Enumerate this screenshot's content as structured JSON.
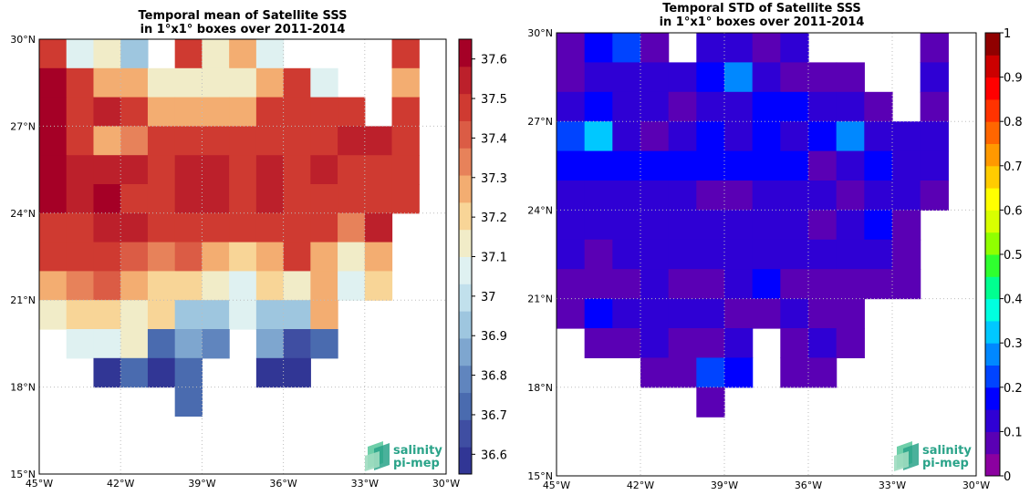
{
  "logo": {
    "line1": "salinity",
    "line2": "pi-mep"
  },
  "chart_data": [
    {
      "type": "heatmap",
      "title": "Temporal mean of Satellite SSS",
      "subtitle": "in 1°x1° boxes over 2011-2014",
      "lon_range": [
        -45,
        -30
      ],
      "lat_range": [
        15,
        30
      ],
      "x_ticks": [
        "45°W",
        "42°W",
        "39°W",
        "36°W",
        "33°W",
        "30°W"
      ],
      "y_ticks": [
        "15°N",
        "18°N",
        "21°N",
        "24°N",
        "27°N",
        "30°N"
      ],
      "colorbar": {
        "range": [
          36.55,
          37.65
        ],
        "ticks": [
          "36.6",
          "36.7",
          "36.8",
          "36.9",
          "37",
          "37.1",
          "37.2",
          "37.3",
          "37.4",
          "37.5",
          "37.6"
        ],
        "colors": [
          "#313695",
          "#3f4ea2",
          "#4a6baf",
          "#6085be",
          "#7ea6cf",
          "#9ec6df",
          "#c1e0ec",
          "#dff1f1",
          "#f1ecc8",
          "#f8d597",
          "#f3ad71",
          "#e7825a",
          "#db5c45",
          "#cf3a31",
          "#bc202b",
          "#a50026"
        ]
      },
      "grid_note": "rows from 29-30°N down to 17-18°N; columns from 45°W to 31°W",
      "grid": [
        [
          37.5,
          37.05,
          37.15,
          36.95,
          null,
          37.5,
          37.15,
          37.25,
          37.05,
          null,
          null,
          null,
          null,
          37.45,
          null
        ],
        [
          37.6,
          37.5,
          37.25,
          37.25,
          37.15,
          37.1,
          37.15,
          37.15,
          37.3,
          37.45,
          37.05,
          null,
          null,
          37.3,
          null
        ],
        [
          37.6,
          37.5,
          37.55,
          37.45,
          37.3,
          37.3,
          37.3,
          37.3,
          37.5,
          37.45,
          37.45,
          37.45,
          null,
          37.5,
          null
        ],
        [
          37.6,
          37.5,
          37.3,
          37.35,
          37.5,
          37.45,
          37.5,
          37.45,
          37.45,
          37.5,
          37.45,
          37.55,
          37.55,
          37.5,
          null
        ],
        [
          37.6,
          37.55,
          37.55,
          37.55,
          37.5,
          37.55,
          37.55,
          37.5,
          37.55,
          37.5,
          37.55,
          37.5,
          37.45,
          37.5,
          null
        ],
        [
          37.6,
          37.55,
          37.6,
          37.5,
          37.5,
          37.55,
          37.55,
          37.5,
          37.55,
          37.5,
          37.5,
          37.45,
          37.45,
          37.5,
          null
        ],
        [
          37.5,
          37.45,
          37.55,
          37.55,
          37.45,
          37.45,
          37.5,
          37.5,
          37.5,
          37.45,
          37.5,
          37.35,
          37.55,
          null,
          null
        ],
        [
          37.5,
          37.45,
          37.45,
          37.4,
          37.35,
          37.4,
          37.3,
          37.2,
          37.3,
          37.45,
          37.3,
          37.15,
          37.3,
          null,
          null
        ],
        [
          37.3,
          37.35,
          37.4,
          37.3,
          37.2,
          37.2,
          37.1,
          37.05,
          37.2,
          37.1,
          37.3,
          37.05,
          37.2,
          null,
          null
        ],
        [
          37.1,
          37.2,
          37.2,
          37.1,
          37.2,
          36.95,
          36.95,
          37.05,
          36.95,
          36.9,
          37.3,
          null,
          null,
          null,
          null
        ],
        [
          null,
          37.05,
          37.05,
          37.15,
          36.75,
          36.85,
          36.8,
          null,
          36.85,
          36.65,
          36.75,
          null,
          null,
          null,
          null
        ],
        [
          null,
          null,
          36.6,
          36.7,
          36.6,
          36.7,
          null,
          null,
          36.6,
          36.6,
          null,
          null,
          null,
          null,
          null
        ],
        [
          null,
          null,
          null,
          null,
          null,
          36.7,
          null,
          null,
          null,
          null,
          null,
          null,
          null,
          null,
          null
        ]
      ]
    },
    {
      "type": "heatmap",
      "title": "Temporal STD of Satellite SSS",
      "subtitle": "in 1°x1° boxes over 2011-2014",
      "lon_range": [
        -45,
        -30
      ],
      "lat_range": [
        15,
        30
      ],
      "x_ticks": [
        "45°W",
        "42°W",
        "39°W",
        "36°W",
        "33°W",
        "30°W"
      ],
      "y_ticks": [
        "15°N",
        "18°N",
        "21°N",
        "24°N",
        "27°N",
        "30°N"
      ],
      "colorbar": {
        "range": [
          0,
          1
        ],
        "ticks": [
          "0",
          "0.1",
          "0.2",
          "0.3",
          "0.4",
          "0.5",
          "0.6",
          "0.7",
          "0.8",
          "0.9",
          "1"
        ],
        "colors": [
          "#8b00a0",
          "#5a00b4",
          "#2f00d4",
          "#0000ff",
          "#0044ff",
          "#0088ff",
          "#00c8ff",
          "#00ffe0",
          "#00ff90",
          "#2fff2f",
          "#90ff00",
          "#d8ff00",
          "#ffff00",
          "#ffcc00",
          "#ff9900",
          "#ff6600",
          "#ff3300",
          "#ff0000",
          "#cc0000",
          "#900000"
        ]
      },
      "grid_note": "rows from 29-30°N down to 17-18°N; columns from 45°W to 31°W",
      "grid": [
        [
          0.05,
          0.15,
          0.2,
          0.05,
          null,
          0.1,
          0.1,
          0.05,
          0.1,
          null,
          null,
          null,
          null,
          0.05,
          null
        ],
        [
          0.05,
          0.1,
          0.1,
          0.1,
          0.1,
          0.15,
          0.25,
          0.1,
          0.05,
          0.05,
          0.05,
          null,
          null,
          0.1,
          null
        ],
        [
          0.1,
          0.15,
          0.1,
          0.1,
          0.05,
          0.1,
          0.1,
          0.15,
          0.15,
          0.1,
          0.1,
          0.05,
          null,
          0.05,
          null
        ],
        [
          0.2,
          0.3,
          0.1,
          0.05,
          0.1,
          0.15,
          0.1,
          0.15,
          0.1,
          0.15,
          0.25,
          0.1,
          0.1,
          0.1,
          null
        ],
        [
          0.15,
          0.15,
          0.15,
          0.15,
          0.15,
          0.15,
          0.15,
          0.15,
          0.15,
          0.05,
          0.1,
          0.15,
          0.1,
          0.1,
          null
        ],
        [
          0.1,
          0.1,
          0.1,
          0.1,
          0.1,
          0.05,
          0.05,
          0.1,
          0.1,
          0.1,
          0.05,
          0.1,
          0.1,
          0.05,
          null
        ],
        [
          0.1,
          0.1,
          0.1,
          0.1,
          0.1,
          0.1,
          0.1,
          0.1,
          0.1,
          0.05,
          0.1,
          0.15,
          0.05,
          null,
          null
        ],
        [
          0.1,
          0.05,
          0.1,
          0.1,
          0.1,
          0.1,
          0.1,
          0.1,
          0.1,
          0.1,
          0.1,
          0.1,
          0.05,
          null,
          null
        ],
        [
          0.05,
          0.05,
          0.05,
          0.1,
          0.05,
          0.05,
          0.1,
          0.15,
          0.05,
          0.05,
          0.05,
          0.05,
          0.05,
          null,
          null
        ],
        [
          0.05,
          0.15,
          0.1,
          0.1,
          0.1,
          0.1,
          0.05,
          0.05,
          0.1,
          0.05,
          0.05,
          null,
          null,
          null,
          null
        ],
        [
          null,
          0.05,
          0.05,
          0.1,
          0.05,
          0.05,
          0.1,
          null,
          0.05,
          0.1,
          0.05,
          null,
          null,
          null,
          null
        ],
        [
          null,
          null,
          null,
          0.05,
          0.05,
          0.2,
          0.15,
          null,
          0.05,
          0.05,
          null,
          null,
          null,
          null,
          null
        ],
        [
          null,
          null,
          null,
          null,
          null,
          0.05,
          null,
          null,
          null,
          null,
          null,
          null,
          null,
          null,
          null
        ]
      ]
    }
  ]
}
